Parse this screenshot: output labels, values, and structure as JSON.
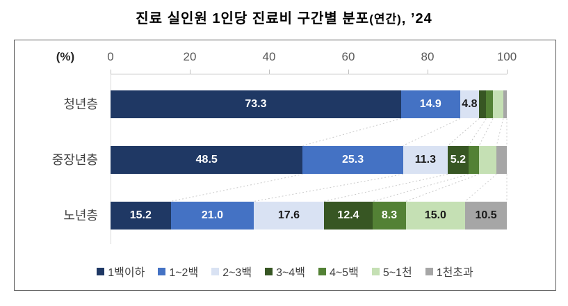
{
  "title": {
    "main": "진료 실인원 1인당 진료비 구간별 분포",
    "paren": "(연간)",
    "suffix": ", ’24"
  },
  "chart_data": {
    "type": "bar",
    "orientation": "horizontal-stacked",
    "title": "진료 실인원 1인당 진료비 구간별 분포(연간), ’24",
    "unit_label": "(%)",
    "categories": [
      "청년층",
      "중장년층",
      "노년층"
    ],
    "series": [
      {
        "name": "1백이하",
        "color": "#1F3864",
        "label_color": "#FFFFFF",
        "values": [
          73.3,
          48.5,
          15.2
        ],
        "labels": [
          "73.3",
          "48.5",
          "15.2"
        ]
      },
      {
        "name": "1~2백",
        "color": "#4472C4",
        "label_color": "#FFFFFF",
        "values": [
          14.9,
          25.3,
          21.0
        ],
        "labels": [
          "14.9",
          "25.3",
          "21.0"
        ]
      },
      {
        "name": "2~3백",
        "color": "#D9E2F3",
        "label_color": "#1A1A1A",
        "values": [
          4.8,
          11.3,
          17.6
        ],
        "labels": [
          "4.8",
          "11.3",
          "17.6"
        ]
      },
      {
        "name": "3~4백",
        "color": "#375623",
        "label_color": "#FFFFFF",
        "values": [
          1.8,
          5.2,
          12.4
        ],
        "labels": [
          "",
          "5.2",
          "12.4"
        ]
      },
      {
        "name": "4~5백",
        "color": "#538135",
        "label_color": "#FFFFFF",
        "values": [
          1.7,
          2.7,
          8.3
        ],
        "labels": [
          "",
          "",
          "8.3"
        ]
      },
      {
        "name": "5~1천",
        "color": "#C5E0B4",
        "label_color": "#1A1A1A",
        "values": [
          2.6,
          4.4,
          15.0
        ],
        "labels": [
          "",
          "",
          "15.0"
        ]
      },
      {
        "name": "1천초과",
        "color": "#A6A6A6",
        "label_color": "#1A1A1A",
        "values": [
          0.9,
          2.6,
          10.5
        ],
        "labels": [
          "",
          "",
          "10.5"
        ]
      }
    ],
    "x_axis": {
      "ticks": [
        "0",
        "20",
        "40",
        "60",
        "80",
        "100"
      ],
      "range": [
        0,
        100
      ]
    },
    "legend_position": "bottom",
    "connector_lines": true,
    "style": {
      "axis_line_color": "#BFBFBF",
      "zero_line_color": "#D9D9D9",
      "connector_color": "#C9C9C9",
      "frame_border_color": "#595959"
    }
  }
}
